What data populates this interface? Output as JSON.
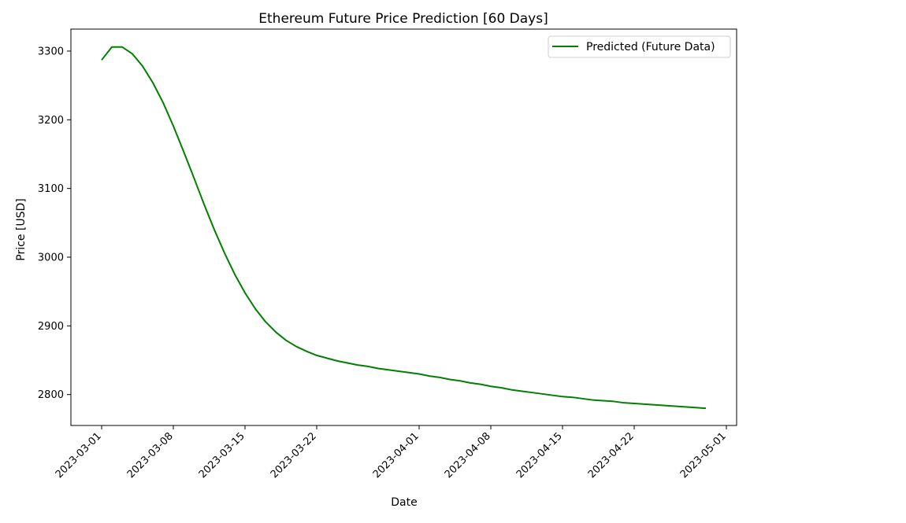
{
  "chart_data": {
    "type": "line",
    "title": "Ethereum Future Price Prediction [60 Days]",
    "xlabel": "Date",
    "ylabel": "Price [USD]",
    "x_tick_labels": [
      "2023-03-01",
      "2023-03-08",
      "2023-03-15",
      "2023-03-22",
      "2023-04-01",
      "2023-04-08",
      "2023-04-15",
      "2023-04-22",
      "2023-05-01"
    ],
    "y_tick_labels": [
      "2800",
      "2900",
      "3000",
      "3100",
      "3200",
      "3300"
    ],
    "xlim": [
      "2023-02-26",
      "2023-05-02"
    ],
    "ylim": [
      2755,
      3332
    ],
    "grid": false,
    "legend_position": "top-right",
    "series": [
      {
        "name": "Predicted (Future Data)",
        "color": "#008000",
        "x": [
          "2023-03-01",
          "2023-03-02",
          "2023-03-03",
          "2023-03-04",
          "2023-03-05",
          "2023-03-06",
          "2023-03-07",
          "2023-03-08",
          "2023-03-09",
          "2023-03-10",
          "2023-03-11",
          "2023-03-12",
          "2023-03-13",
          "2023-03-14",
          "2023-03-15",
          "2023-03-16",
          "2023-03-17",
          "2023-03-18",
          "2023-03-19",
          "2023-03-20",
          "2023-03-21",
          "2023-03-22",
          "2023-03-23",
          "2023-03-24",
          "2023-03-25",
          "2023-03-26",
          "2023-03-27",
          "2023-03-28",
          "2023-03-29",
          "2023-03-30",
          "2023-03-31",
          "2023-04-01",
          "2023-04-02",
          "2023-04-03",
          "2023-04-04",
          "2023-04-05",
          "2023-04-06",
          "2023-04-07",
          "2023-04-08",
          "2023-04-09",
          "2023-04-10",
          "2023-04-11",
          "2023-04-12",
          "2023-04-13",
          "2023-04-14",
          "2023-04-15",
          "2023-04-16",
          "2023-04-17",
          "2023-04-18",
          "2023-04-19",
          "2023-04-20",
          "2023-04-21",
          "2023-04-22",
          "2023-04-23",
          "2023-04-24",
          "2023-04-25",
          "2023-04-26",
          "2023-04-27",
          "2023-04-28",
          "2023-04-29"
        ],
        "values": [
          3287,
          3306,
          3306,
          3296,
          3278,
          3254,
          3225,
          3191,
          3154,
          3116,
          3077,
          3040,
          3006,
          2975,
          2948,
          2925,
          2906,
          2891,
          2879,
          2870,
          2863,
          2857,
          2853,
          2849,
          2846,
          2843,
          2841,
          2838,
          2836,
          2834,
          2832,
          2830,
          2827,
          2825,
          2822,
          2820,
          2817,
          2815,
          2812,
          2810,
          2807,
          2805,
          2803,
          2801,
          2799,
          2797,
          2796,
          2794,
          2792,
          2791,
          2790,
          2788,
          2787,
          2786,
          2785,
          2784,
          2783,
          2782,
          2781,
          2780
        ]
      }
    ]
  }
}
